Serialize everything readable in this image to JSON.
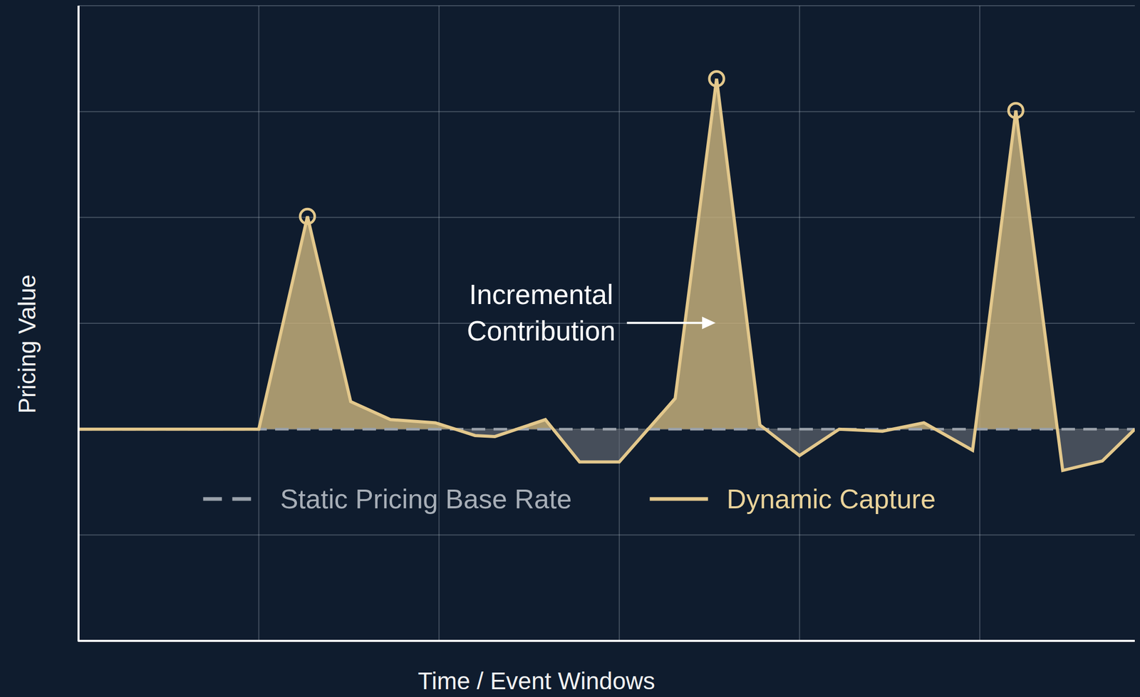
{
  "chart_data": {
    "type": "line",
    "x_label": "Time / Event Windows",
    "y_label": "Pricing Value",
    "annotations": [
      "Incremental Contribution"
    ],
    "x": [
      0,
      1.0,
      1.27,
      1.51,
      1.73,
      1.98,
      2.2,
      2.31,
      2.59,
      2.78,
      3.0,
      3.31,
      3.54,
      3.78,
      4.0,
      4.22,
      4.46,
      4.69,
      4.96,
      5.2,
      5.46,
      5.68,
      5.86
    ],
    "series": [
      {
        "name": "Static Pricing Base Rate",
        "color": "#9aa1aa",
        "line_style": "dashed",
        "values": [
          2,
          2,
          2,
          2,
          2,
          2,
          2,
          2,
          2,
          2,
          2,
          2,
          2,
          2,
          2,
          2,
          2,
          2,
          2,
          2,
          2,
          2,
          2
        ]
      },
      {
        "name": "Dynamic Capture",
        "color": "#e3c88c",
        "line_style": "solid",
        "marker": "circle",
        "values": [
          2.0,
          2.0,
          4.01,
          2.26,
          2.09,
          2.06,
          1.94,
          1.93,
          2.09,
          1.69,
          1.69,
          2.29,
          5.31,
          2.04,
          1.75,
          2.0,
          1.98,
          2.06,
          1.8,
          5.01,
          1.61,
          1.7,
          2.0
        ]
      }
    ],
    "xlim": [
      0,
      5.86
    ],
    "ylim": [
      0,
      6
    ],
    "xticks": [
      0,
      1,
      2,
      3,
      4,
      5
    ],
    "yticks": [
      0,
      1,
      2,
      3,
      4,
      5,
      6
    ],
    "grid": true,
    "tick_labels": false,
    "legend": "bottom"
  }
}
